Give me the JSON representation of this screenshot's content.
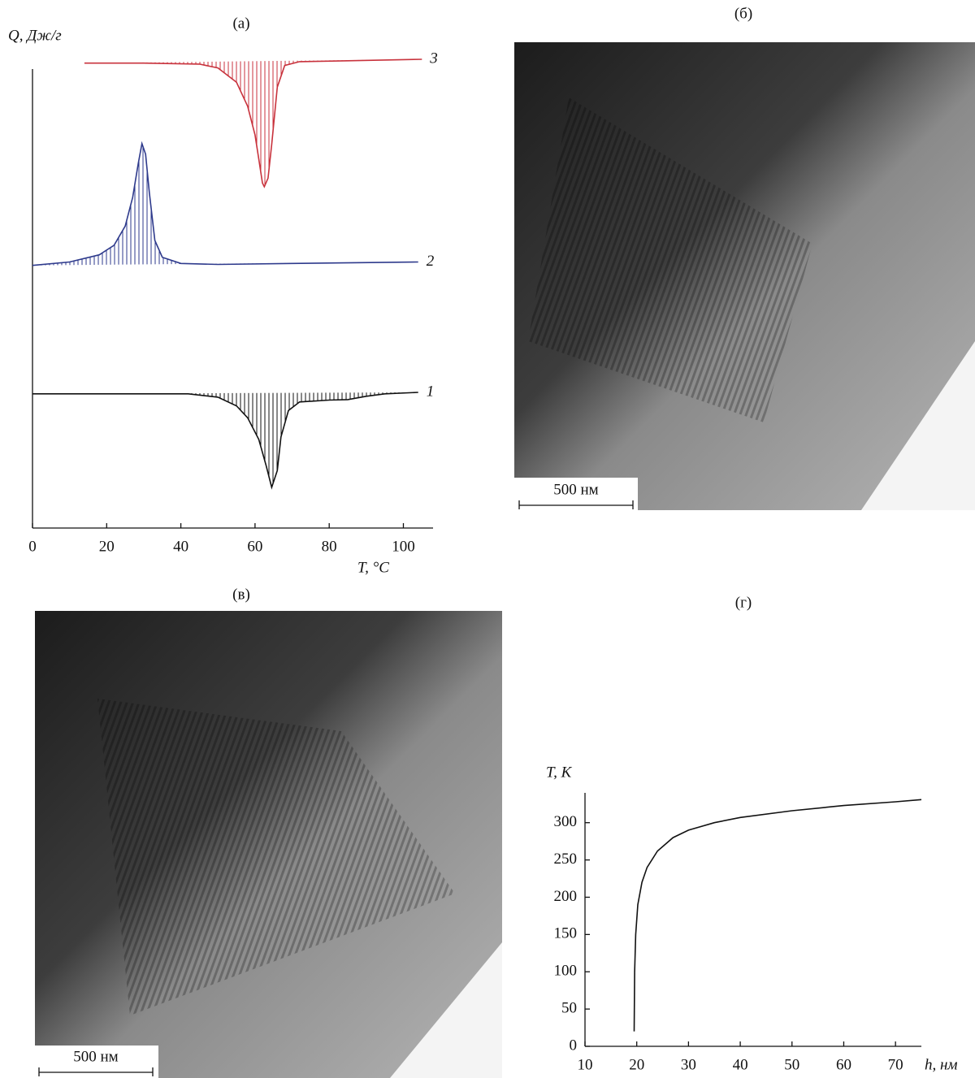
{
  "panel_labels": [
    "(а)",
    "(б)",
    "(в)",
    "(г)"
  ],
  "images": [
    {
      "scale_bar": "500 нм"
    },
    {
      "scale_bar": "500 нм"
    }
  ],
  "chart_data": [
    {
      "type": "line",
      "x_label": "T, °C",
      "y_label": "Q, Дж/г",
      "xlim": [
        0,
        108
      ],
      "ylim": [
        0,
        100
      ],
      "xticks": [
        0,
        20,
        40,
        60,
        80,
        100
      ],
      "hatched": true,
      "series": [
        {
          "name": "3",
          "color": "#c8323c",
          "x": [
            14,
            30,
            45,
            50,
            55,
            58,
            60,
            61,
            62,
            62.5,
            63.5,
            64.5,
            66,
            68,
            72,
            85,
            105
          ],
          "values": [
            97,
            97,
            96.8,
            96,
            93,
            88,
            82,
            77,
            72,
            71.2,
            73,
            80,
            92,
            96.5,
            97.3,
            97.5,
            97.8
          ]
        },
        {
          "name": "2",
          "color": "#2e3a8c",
          "x": [
            0,
            10,
            18,
            22,
            25,
            27,
            28.5,
            29.5,
            30.5,
            31.5,
            33,
            35,
            40,
            50,
            70,
            104
          ],
          "values": [
            54.8,
            55.5,
            57,
            59,
            63,
            69,
            76,
            80.2,
            78,
            70,
            60,
            56.5,
            55.2,
            55,
            55.2,
            55.5
          ]
        },
        {
          "name": "1",
          "color": "#111111",
          "x": [
            0,
            30,
            42,
            50,
            55,
            58,
            61,
            63,
            64.5,
            66,
            67,
            69,
            72,
            80,
            85,
            90,
            95,
            104
          ],
          "values": [
            28,
            28,
            28,
            27.3,
            25.5,
            23,
            18.5,
            13,
            8.5,
            12,
            19,
            24.5,
            26.3,
            26.7,
            26.8,
            27.5,
            28,
            28.3
          ]
        }
      ]
    },
    {
      "type": "line",
      "x_label": "h, нм",
      "y_label": "T, K",
      "xlim": [
        10,
        75
      ],
      "ylim": [
        0,
        340
      ],
      "xticks": [
        10,
        20,
        30,
        40,
        50,
        60,
        70
      ],
      "yticks": [
        0,
        50,
        100,
        150,
        200,
        250,
        300
      ],
      "series": [
        {
          "color": "#111111",
          "x": [
            19.5,
            19.6,
            19.8,
            20.2,
            21,
            22,
            24,
            27,
            30,
            35,
            40,
            50,
            60,
            70,
            75
          ],
          "values": [
            20,
            100,
            150,
            190,
            220,
            240,
            262,
            280,
            290,
            300,
            307,
            316,
            323,
            328,
            331
          ]
        }
      ]
    }
  ]
}
